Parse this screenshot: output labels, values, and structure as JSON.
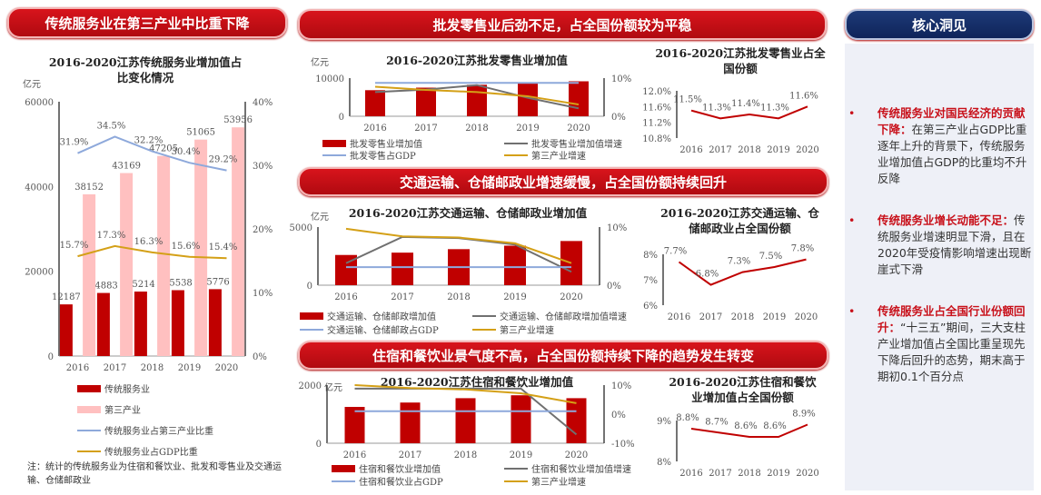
{
  "banners": {
    "left": "传统服务业在第三产业中比重下降",
    "retail": "批发零售业后劲不足，占全国份额较为平稳",
    "transport": "交通运输、仓储邮政业增速缓慢，占全国份额持续回升",
    "hotel": "住宿和餐饮业景气度不高，占全国份额持续下降的趋势发生转变",
    "insight": "核心洞见"
  },
  "note": "注：统计的传统服务业为住宿和餐饮业、批发和零售业及交通运输、仓储邮政业",
  "insights": [
    {
      "head": "传统服务业对国民经济的贡献下降：",
      "body": "在第三产业占GDP比重逐年上升的背景下，传统服务业增加值占GDP的比重均不升反降"
    },
    {
      "head": "传统服务业增长动能不足：",
      "body": "传统服务业增速明显下滑，且在2020年受疫情影响增速出现断崖式下滑"
    },
    {
      "head": "传统服务业占全国行业份额回升：",
      "body": "“十三五”期间，三大支柱产业增加值占全国比重呈现先下降后回升的态势，期末高于期初0.1个百分点"
    }
  ],
  "colors": {
    "red": "#c00000",
    "pink": "#ffc0c0",
    "blue": "#8ea9db",
    "gold": "#d4a017",
    "gray": "#707070",
    "navy": "#1d3a78"
  },
  "chart_data": [
    {
      "id": "main",
      "type": "bar",
      "title": "2016-2020江苏传统服务业增加值占比变化情况",
      "unit": "亿元",
      "categories": [
        "2016",
        "2017",
        "2018",
        "2019",
        "2020"
      ],
      "ylim": [
        0,
        60000
      ],
      "yticks": [
        "0",
        "20000",
        "40000",
        "60000"
      ],
      "y2lim": [
        0,
        40
      ],
      "y2ticks": [
        "0%",
        "10%",
        "20%",
        "30%",
        "40%"
      ],
      "series": [
        {
          "name": "传统服务业",
          "kind": "bar",
          "axis": "left",
          "color": "#c00000",
          "values": [
            12187,
            14883,
            15214,
            15538,
            15776
          ],
          "labels": [
            "12187",
            "14883",
            "15214",
            "15538",
            "15776"
          ]
        },
        {
          "name": "第三产业",
          "kind": "bar",
          "axis": "left",
          "color": "#ffc0c0",
          "values": [
            38152,
            43169,
            47205,
            51065,
            53956
          ],
          "labels": [
            "38152",
            "43169",
            "47205",
            "51065",
            "53956"
          ]
        },
        {
          "name": "传统服务业占第三产业比重",
          "kind": "line",
          "axis": "right",
          "color": "#8ea9db",
          "values": [
            31.9,
            34.5,
            32.2,
            30.4,
            29.2
          ],
          "labels": [
            "31.9%",
            "34.5%",
            "32.2%",
            "30.4%",
            "29.2%"
          ]
        },
        {
          "name": "传统服务业占GDP比重",
          "kind": "line",
          "axis": "right",
          "color": "#d4a017",
          "values": [
            15.7,
            17.3,
            16.3,
            15.6,
            15.4
          ],
          "labels": [
            "15.7%",
            "17.3%",
            "16.3%",
            "15.6%",
            "15.4%"
          ]
        }
      ]
    },
    {
      "id": "retail",
      "type": "bar",
      "title": "2016-2020江苏批发零售业增加值",
      "unit": "亿元",
      "categories": [
        "2016",
        "2017",
        "2018",
        "2019",
        "2020"
      ],
      "ylim": [
        0,
        12000
      ],
      "yticks": [
        "0",
        "10000"
      ],
      "y2lim": [
        0,
        12
      ],
      "y2ticks": [
        "0%",
        "10%"
      ],
      "series": [
        {
          "name": "批发零售业增加值",
          "kind": "bar",
          "axis": "left",
          "color": "#c00000",
          "values": [
            8200,
            9000,
            9900,
            10500,
            11000
          ]
        },
        {
          "name": "批发零售业增加值增速",
          "kind": "line",
          "axis": "right",
          "color": "#707070",
          "values": [
            7.6,
            8.4,
            9.8,
            5.8,
            2.5
          ]
        },
        {
          "name": "批发零售占GDP",
          "kind": "line",
          "axis": "right",
          "color": "#8ea9db",
          "values": [
            10.5,
            10.5,
            10.5,
            10.5,
            10.5
          ]
        },
        {
          "name": "第三产业增速",
          "kind": "line",
          "axis": "right",
          "color": "#d4a017",
          "values": [
            9.3,
            8.3,
            7.6,
            6.3,
            3.7
          ]
        }
      ]
    },
    {
      "id": "retail-share",
      "type": "line",
      "title": "2016-2020江苏批发零售业占全国份额",
      "categories": [
        "2016",
        "2017",
        "2018",
        "2019",
        "2020"
      ],
      "ylim": [
        10.8,
        12.0
      ],
      "yticks": [
        "10.8%",
        "11.2%",
        "11.6%",
        "12.0%"
      ],
      "series": [
        {
          "kind": "line",
          "axis": "left",
          "color": "#c00000",
          "values": [
            11.5,
            11.3,
            11.4,
            11.3,
            11.6
          ],
          "labels": [
            "11.5%",
            "11.3%",
            "11.4%",
            "11.3%",
            "11.6%"
          ]
        }
      ]
    },
    {
      "id": "transport",
      "type": "bar",
      "title": "2016-2020江苏交通运输、仓储邮政业增加值",
      "unit": "亿元",
      "categories": [
        "2016",
        "2017",
        "2018",
        "2019",
        "2020"
      ],
      "ylim": [
        0,
        5000
      ],
      "yticks": [
        "0",
        "5000"
      ],
      "y2lim": [
        0,
        10
      ],
      "y2ticks": [
        "0%",
        "10%"
      ],
      "series": [
        {
          "name": "交通运输、仓储邮政增加值",
          "kind": "bar",
          "axis": "left",
          "color": "#c00000",
          "values": [
            2600,
            2800,
            3100,
            3400,
            3800
          ]
        },
        {
          "name": "交通运输、仓储邮政增加值增速",
          "kind": "line",
          "axis": "right",
          "color": "#707070",
          "values": [
            3.8,
            8.3,
            8.1,
            7.0,
            2.3
          ]
        },
        {
          "name": "交通运输、仓储邮政占GDP",
          "kind": "line",
          "axis": "right",
          "color": "#8ea9db",
          "values": [
            3.1,
            3.1,
            3.1,
            3.1,
            3.1
          ]
        },
        {
          "name": "第三产业增速",
          "kind": "line",
          "axis": "right",
          "color": "#d4a017",
          "values": [
            9.7,
            8.4,
            8.2,
            7.2,
            3.8
          ]
        }
      ]
    },
    {
      "id": "transport-share",
      "type": "line",
      "title": "2016-2020江苏交通运输、仓储邮政业占全国份额",
      "categories": [
        "2016",
        "2017",
        "2018",
        "2019",
        "2020"
      ],
      "ylim": [
        6,
        8
      ],
      "yticks": [
        "6%",
        "7%",
        "8%"
      ],
      "series": [
        {
          "kind": "line",
          "axis": "left",
          "color": "#c00000",
          "values": [
            7.7,
            6.8,
            7.3,
            7.5,
            7.8
          ],
          "labels": [
            "7.7%",
            "6.8%",
            "7.3%",
            "7.5%",
            "7.8%"
          ]
        }
      ]
    },
    {
      "id": "hotel",
      "type": "bar",
      "title": "2016-2020江苏住宿和餐饮业增加值",
      "unit": "亿元",
      "categories": [
        "2016",
        "2017",
        "2018",
        "2019",
        "2020"
      ],
      "ylim": [
        0,
        2000
      ],
      "yticks": [
        "0",
        "2000"
      ],
      "y2lim": [
        -10,
        10
      ],
      "y2ticks": [
        "-10%",
        "0%",
        "10%"
      ],
      "series": [
        {
          "name": "住宿和餐饮业增加值",
          "kind": "bar",
          "axis": "left",
          "color": "#c00000",
          "values": [
            1250,
            1400,
            1550,
            1650,
            1550
          ]
        },
        {
          "name": "住宿和餐饮业增加值增速",
          "kind": "line",
          "axis": "right",
          "color": "#707070",
          "values": [
            8.8,
            8.8,
            8.8,
            8.8,
            -7.0
          ]
        },
        {
          "name": "住宿和餐饮业占GDP",
          "kind": "line",
          "axis": "right",
          "color": "#8ea9db",
          "values": [
            1.0,
            1.0,
            1.0,
            1.0,
            1.0
          ]
        },
        {
          "name": "第三产业增速",
          "kind": "line",
          "axis": "right",
          "color": "#d4a017",
          "values": [
            10.0,
            9.0,
            8.5,
            7.2,
            3.8
          ]
        }
      ]
    },
    {
      "id": "hotel-share",
      "type": "line",
      "title": "2016-2020江苏住宿和餐饮业增加值占全国份额",
      "categories": [
        "2016",
        "2017",
        "2018",
        "2019",
        "2020"
      ],
      "ylim": [
        8,
        9
      ],
      "yticks": [
        "8%",
        "9%"
      ],
      "series": [
        {
          "kind": "line",
          "axis": "left",
          "color": "#c00000",
          "values": [
            8.8,
            8.7,
            8.6,
            8.6,
            8.9
          ],
          "labels": [
            "8.8%",
            "8.7%",
            "8.6%",
            "8.6%",
            "8.9%"
          ]
        }
      ]
    }
  ]
}
